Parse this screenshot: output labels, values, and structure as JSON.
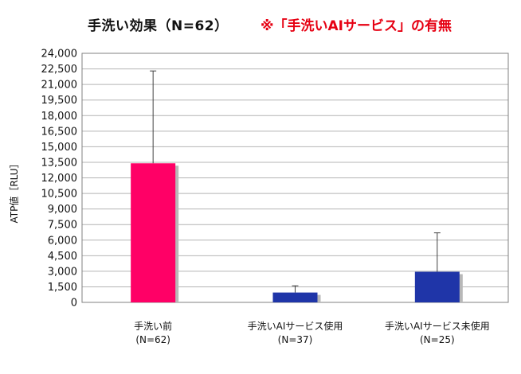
{
  "chart_data": {
    "type": "bar",
    "title": "手洗い効果（N=62）",
    "subtitle": "※「手洗いAIサービス」の有無",
    "ylabel": "ATP値［RLU］",
    "ylim": [
      0,
      24000
    ],
    "yticks": [
      "0",
      "1,500",
      "3,000",
      "4,500",
      "6,000",
      "7,500",
      "9,000",
      "10,500",
      "12,000",
      "13,500",
      "15,000",
      "16,500",
      "18,000",
      "19,500",
      "21,000",
      "22,500",
      "24,000"
    ],
    "ytick_values": [
      0,
      1500,
      3000,
      4500,
      6000,
      7500,
      9000,
      10500,
      12000,
      13500,
      15000,
      16500,
      18000,
      19500,
      21000,
      22500,
      24000
    ],
    "categories": [
      {
        "line1": "手洗い前",
        "line2": "(N=62)"
      },
      {
        "line1": "手洗いAIサービス使用",
        "line2": "(N=37)"
      },
      {
        "line1": "手洗いAIサービス未使用",
        "line2": "(N=25)"
      }
    ],
    "values": [
      13400,
      950,
      2950
    ],
    "error_upper": [
      22300,
      1600,
      6700
    ],
    "colors": [
      "#ff0066",
      "#1f35a8",
      "#1f35a8"
    ],
    "grid": true
  }
}
